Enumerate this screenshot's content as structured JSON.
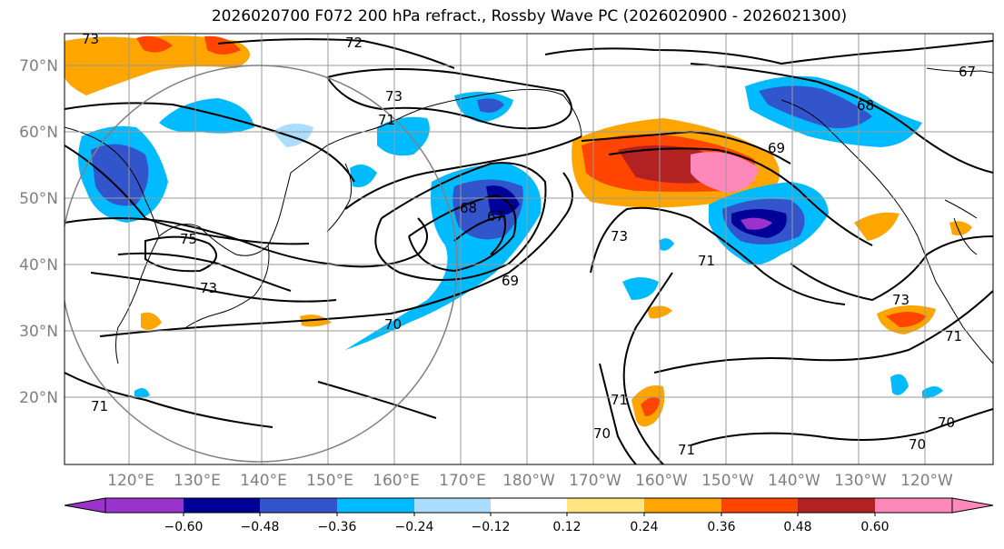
{
  "title": "2026020700 F072 200 hPa refract., Rossby Wave PC (2026020900 - 2026021300)",
  "lat_labels": [
    "70°N",
    "60°N",
    "50°N",
    "40°N",
    "30°N",
    "20°N"
  ],
  "lon_labels": [
    "120°E",
    "130°E",
    "140°E",
    "150°E",
    "160°E",
    "170°E",
    "180°W",
    "170°W",
    "160°W",
    "150°W",
    "140°W",
    "130°W",
    "120°W"
  ],
  "colorbar": {
    "colors": [
      "#9933cc",
      "#000099",
      "#3355cc",
      "#00bbff",
      "#aaddff",
      "#ffffff",
      "#ffe680",
      "#ffa500",
      "#ff4500",
      "#b22222",
      "#ff88bb"
    ],
    "ticks": [
      "−0.60",
      "−0.48",
      "−0.36",
      "−0.24",
      "−0.12",
      "0.12",
      "0.24",
      "0.36",
      "0.48",
      "0.60"
    ]
  },
  "contour_labels": [
    "72",
    "73",
    "71",
    "75",
    "73",
    "68",
    "67",
    "69",
    "70",
    "73",
    "71",
    "73",
    "69",
    "68",
    "67",
    "71",
    "70",
    "71",
    "70",
    "73",
    "71",
    "70",
    "71"
  ]
}
